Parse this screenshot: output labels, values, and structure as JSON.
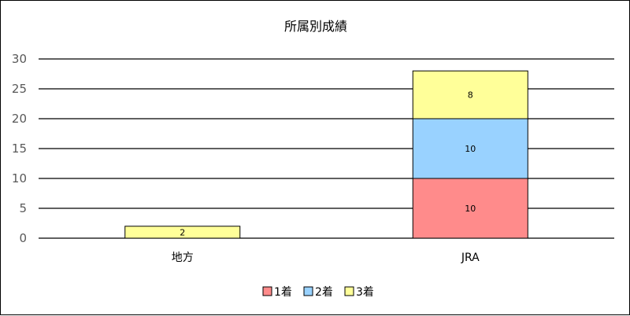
{
  "chart_data": {
    "type": "bar",
    "stacked": true,
    "title": "所属別成績",
    "categories": [
      "地方",
      "JRA"
    ],
    "series": [
      {
        "name": "1着",
        "values": [
          0,
          10
        ],
        "color": "#ff8b8b"
      },
      {
        "name": "2着",
        "values": [
          0,
          10
        ],
        "color": "#99d2ff"
      },
      {
        "name": "3着",
        "values": [
          2,
          8
        ],
        "color": "#ffff99"
      }
    ],
    "ylim": [
      0,
      30
    ],
    "yticks": [
      0,
      5,
      10,
      15,
      20,
      25,
      30
    ],
    "grid": true,
    "legend": "bottom",
    "xlabel": "",
    "ylabel": ""
  }
}
